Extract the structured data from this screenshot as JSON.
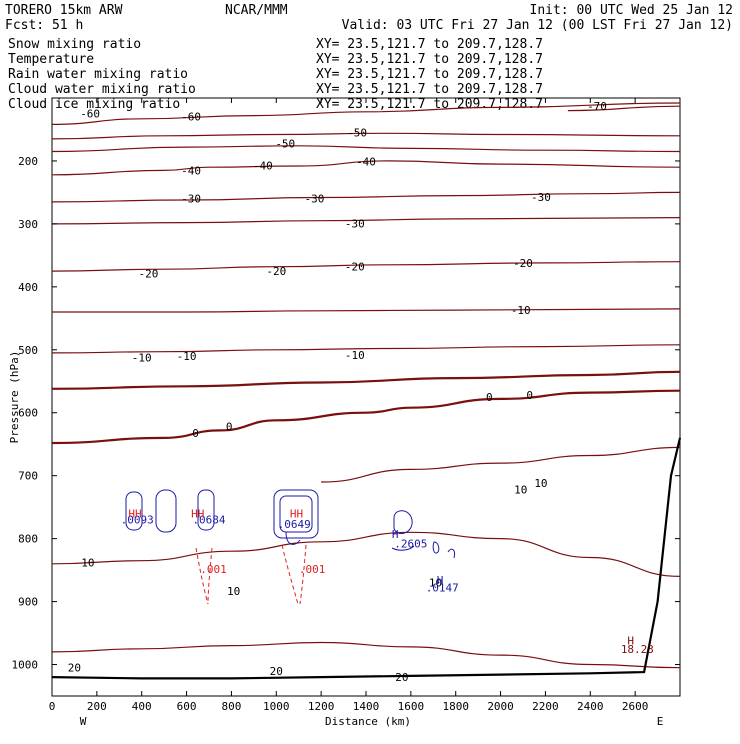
{
  "header": {
    "model": "TORERO  15km ARW",
    "center": "NCAR/MMM",
    "init": "Init: 00 UTC Wed 25 Jan 12",
    "fcst": "Fcst:    51 h",
    "valid": "Valid: 03 UTC Fri 27 Jan 12 (00 LST Fri 27 Jan 12)"
  },
  "fields": [
    {
      "name": "Snow mixing ratio",
      "xy": "",
      "color": "#000000"
    },
    {
      "name": "Temperature",
      "xy": "XY=  23.5,121.7 to 209.7,128.7",
      "color": "#c00000"
    },
    {
      "name": "Rain water mixing ratio",
      "xy": "XY=  23.5,121.7 to 209.7,128.7",
      "color": "#c00000"
    },
    {
      "name": "Cloud water mixing ratio",
      "xy": "XY=  23.5,121.7 to 209.7,128.7",
      "color": "#1a1aa8"
    },
    {
      "name": "Cloud ice mixing ratio",
      "xy": "XY=  23.5,121.7 to 209.7,128.7",
      "color": "#000000"
    }
  ],
  "snow_xy": "XY=  23.5,121.7 to 209.7,128.7",
  "colors": {
    "temperature": "#7a0f0f",
    "rain": "#e02020",
    "cloud_water": "#1a1aa8",
    "terrain": "#000000"
  },
  "chart_data": {
    "type": "line",
    "xlabel": "Distance (km)",
    "ylabel": "Pressure (hPa)",
    "xlim": [
      0,
      2800
    ],
    "ylim": [
      1050,
      100
    ],
    "x_ticks": [
      0,
      200,
      400,
      600,
      800,
      1000,
      1200,
      1400,
      1600,
      1800,
      2000,
      2200,
      2400,
      2600
    ],
    "y_ticks": [
      200,
      300,
      400,
      500,
      600,
      700,
      800,
      900,
      1000
    ],
    "x_end_labels": [
      "W",
      "E"
    ],
    "temperature_contours": [
      {
        "level": -60,
        "points": [
          [
            0,
            142
          ],
          [
            400,
            133
          ],
          [
            900,
            128
          ],
          [
            1400,
            122
          ],
          [
            2000,
            115
          ],
          [
            2800,
            108
          ]
        ],
        "labels": [
          [
            170,
            125,
            "-60"
          ],
          [
            620,
            129,
            "-60"
          ]
        ]
      },
      {
        "level": -70,
        "points": [
          [
            2300,
            120
          ],
          [
            2800,
            113
          ]
        ],
        "labels": [
          [
            2430,
            113,
            "-70"
          ]
        ]
      },
      {
        "level": -50,
        "points": [
          [
            0,
            165
          ],
          [
            500,
            160
          ],
          [
            1000,
            158
          ],
          [
            1500,
            156
          ],
          [
            2000,
            158
          ],
          [
            2800,
            160
          ]
        ],
        "labels": [
          [
            1040,
            172,
            "-50"
          ],
          [
            1360,
            155,
            "-50"
          ]
        ]
      },
      {
        "level": -50,
        "points": [
          [
            0,
            185
          ],
          [
            600,
            178
          ],
          [
            1100,
            176
          ],
          [
            1600,
            180
          ],
          [
            2200,
            183
          ],
          [
            2800,
            185
          ]
        ],
        "labels": []
      },
      {
        "level": -40,
        "points": [
          [
            0,
            222
          ],
          [
            500,
            215
          ],
          [
            700,
            210
          ],
          [
            1100,
            208
          ],
          [
            1500,
            200
          ],
          [
            2000,
            205
          ],
          [
            2800,
            210
          ]
        ],
        "labels": [
          [
            620,
            215,
            "-40"
          ],
          [
            940,
            207,
            "-40"
          ],
          [
            1400,
            201,
            "-40"
          ]
        ]
      },
      {
        "level": -30,
        "points": [
          [
            0,
            265
          ],
          [
            600,
            262
          ],
          [
            1200,
            258
          ],
          [
            1800,
            255
          ],
          [
            2400,
            252
          ],
          [
            2800,
            250
          ]
        ],
        "labels": [
          [
            620,
            260,
            "-30"
          ],
          [
            1170,
            260,
            "-30"
          ],
          [
            2180,
            257,
            "-30"
          ]
        ]
      },
      {
        "level": -30,
        "points": [
          [
            0,
            300
          ],
          [
            600,
            298
          ],
          [
            1200,
            295
          ],
          [
            1800,
            292
          ],
          [
            2800,
            290
          ]
        ],
        "labels": [
          [
            1350,
            299,
            "-30"
          ]
        ]
      },
      {
        "level": -20,
        "points": [
          [
            0,
            375
          ],
          [
            500,
            372
          ],
          [
            1000,
            368
          ],
          [
            1500,
            365
          ],
          [
            2200,
            362
          ],
          [
            2800,
            360
          ]
        ],
        "labels": [
          [
            430,
            379,
            "-20"
          ],
          [
            1000,
            375,
            "-20"
          ],
          [
            1350,
            368,
            "-20"
          ],
          [
            2100,
            362,
            "-20"
          ]
        ]
      },
      {
        "level": -10,
        "points": [
          [
            0,
            440
          ],
          [
            600,
            440
          ],
          [
            1200,
            438
          ],
          [
            1800,
            437
          ],
          [
            2800,
            435
          ]
        ],
        "labels": [
          [
            2090,
            437,
            "-10"
          ]
        ]
      },
      {
        "level": -10,
        "points": [
          [
            0,
            505
          ],
          [
            500,
            503
          ],
          [
            1000,
            500
          ],
          [
            1500,
            498
          ],
          [
            2200,
            495
          ],
          [
            2800,
            492
          ]
        ],
        "labels": [
          [
            400,
            512,
            "-10"
          ],
          [
            600,
            510,
            "-10"
          ],
          [
            1350,
            508,
            "-10"
          ]
        ]
      },
      {
        "level": 0,
        "points": [
          [
            0,
            562
          ],
          [
            600,
            558
          ],
          [
            1200,
            552
          ],
          [
            1800,
            545
          ],
          [
            2400,
            540
          ],
          [
            2800,
            535
          ]
        ],
        "labels": []
      },
      {
        "level": 0,
        "points": [
          [
            0,
            648
          ],
          [
            500,
            640
          ],
          [
            750,
            628
          ],
          [
            1000,
            612
          ],
          [
            1400,
            600
          ],
          [
            1600,
            592
          ],
          [
            2000,
            578
          ],
          [
            2400,
            568
          ],
          [
            2800,
            565
          ]
        ],
        "labels": [
          [
            640,
            632,
            "0"
          ],
          [
            790,
            622,
            "0"
          ],
          [
            1950,
            575,
            "0"
          ],
          [
            2130,
            572,
            "0"
          ]
        ]
      },
      {
        "level": 10,
        "points": [
          [
            1200,
            710
          ],
          [
            1600,
            690
          ],
          [
            2000,
            680
          ],
          [
            2400,
            668
          ],
          [
            2800,
            655
          ]
        ],
        "labels": [
          [
            2090,
            722,
            "10"
          ],
          [
            2180,
            712,
            "10"
          ]
        ]
      },
      {
        "level": 10,
        "points": [
          [
            0,
            840
          ],
          [
            400,
            835
          ],
          [
            800,
            820
          ],
          [
            1200,
            805
          ],
          [
            1600,
            790
          ],
          [
            2000,
            800
          ],
          [
            2400,
            830
          ],
          [
            2800,
            860
          ]
        ],
        "labels": [
          [
            160,
            838,
            "10"
          ],
          [
            810,
            883,
            "10"
          ],
          [
            1710,
            870,
            "10"
          ]
        ]
      },
      {
        "level": 20,
        "points": [
          [
            0,
            980
          ],
          [
            400,
            975
          ],
          [
            800,
            970
          ],
          [
            1200,
            965
          ],
          [
            1600,
            972
          ],
          [
            2000,
            985
          ],
          [
            2400,
            1000
          ],
          [
            2800,
            1005
          ]
        ],
        "labels": [
          [
            100,
            1005,
            "20"
          ],
          [
            1000,
            1010,
            "20"
          ],
          [
            1560,
            1020,
            "20"
          ]
        ]
      }
    ],
    "cloud_water_centers": [
      {
        "x": 380,
        "p": 770,
        "label": ".0093"
      },
      {
        "x": 700,
        "p": 770,
        "label": ".0684"
      },
      {
        "x": 1080,
        "p": 777,
        "label": ".0649"
      },
      {
        "x": 1600,
        "p": 808,
        "label": ".2605"
      },
      {
        "x": 1740,
        "p": 878,
        "label": ".0147"
      }
    ],
    "rain_labels": [
      {
        "x": 720,
        "p": 848,
        "label": ".001"
      },
      {
        "x": 1160,
        "p": 848,
        "label": ".001"
      }
    ],
    "max_labels": [
      {
        "x": 370,
        "p": 760,
        "label": "HH"
      },
      {
        "x": 650,
        "p": 760,
        "label": "HH"
      },
      {
        "x": 1090,
        "p": 760,
        "label": "HH"
      },
      {
        "x": 1530,
        "p": 793,
        "label": "H"
      },
      {
        "x": 1730,
        "p": 866,
        "label": "H"
      },
      {
        "x": 2580,
        "p": 962,
        "label": "H"
      }
    ],
    "temp_max_value": {
      "x": 2610,
      "p": 975,
      "label": "18.23"
    },
    "terrain": [
      [
        0,
        1020
      ],
      [
        400,
        1022
      ],
      [
        800,
        1022
      ],
      [
        1200,
        1020
      ],
      [
        1600,
        1018
      ],
      [
        2000,
        1016
      ],
      [
        2400,
        1014
      ],
      [
        2640,
        1012
      ],
      [
        2700,
        900
      ],
      [
        2760,
        700
      ],
      [
        2800,
        640
      ]
    ]
  }
}
